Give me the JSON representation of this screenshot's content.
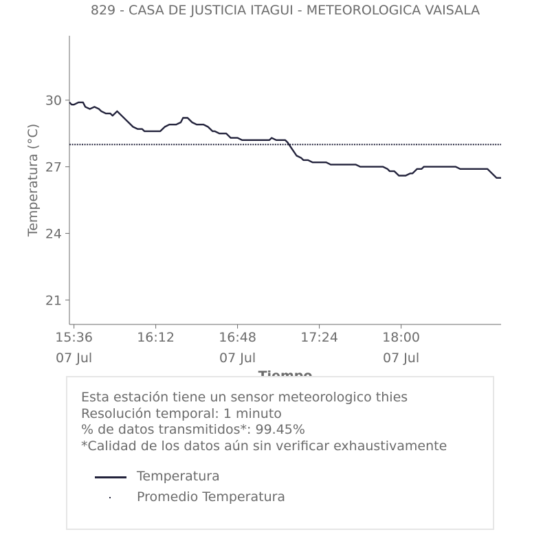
{
  "chart_data": {
    "type": "line",
    "title": "829 - CASA DE JUSTICIA ITAGUI - METEOROLOGICA VAISALA",
    "xlabel": "Tiempo",
    "ylabel": "Temperatura (°C)",
    "ylim": [
      19.9,
      32.9
    ],
    "xlim": [
      "15:34",
      "18:44"
    ],
    "y_ticks": [
      "21",
      "24",
      "27",
      "30"
    ],
    "x_ticks": [
      {
        "time": "15:36",
        "line1": "15:36",
        "line2": "07 Jul"
      },
      {
        "time": "16:12",
        "line1": "16:12",
        "line2": ""
      },
      {
        "time": "16:48",
        "line1": "16:48",
        "line2": "07 Jul"
      },
      {
        "time": "17:24",
        "line1": "17:24",
        "line2": ""
      },
      {
        "time": "18:00",
        "line1": "18:00",
        "line2": "07 Jul"
      }
    ],
    "grid": false,
    "series": [
      {
        "name": "Temperatura",
        "color": "#22223b",
        "style": "solid",
        "points": [
          [
            "15:34",
            29.9
          ],
          [
            "15:35",
            29.8
          ],
          [
            "15:36",
            29.8
          ],
          [
            "15:38",
            29.9
          ],
          [
            "15:40",
            29.9
          ],
          [
            "15:41",
            29.7
          ],
          [
            "15:43",
            29.6
          ],
          [
            "15:45",
            29.7
          ],
          [
            "15:47",
            29.6
          ],
          [
            "15:48",
            29.5
          ],
          [
            "15:50",
            29.4
          ],
          [
            "15:52",
            29.4
          ],
          [
            "15:53",
            29.3
          ],
          [
            "15:55",
            29.5
          ],
          [
            "15:57",
            29.3
          ],
          [
            "15:59",
            29.1
          ],
          [
            "16:00",
            29.0
          ],
          [
            "16:02",
            28.8
          ],
          [
            "16:04",
            28.7
          ],
          [
            "16:06",
            28.7
          ],
          [
            "16:07",
            28.6
          ],
          [
            "16:12",
            28.6
          ],
          [
            "16:14",
            28.6
          ],
          [
            "16:16",
            28.8
          ],
          [
            "16:18",
            28.9
          ],
          [
            "16:21",
            28.9
          ],
          [
            "16:23",
            29.0
          ],
          [
            "16:24",
            29.2
          ],
          [
            "16:26",
            29.2
          ],
          [
            "16:28",
            29.0
          ],
          [
            "16:30",
            28.9
          ],
          [
            "16:33",
            28.9
          ],
          [
            "16:35",
            28.8
          ],
          [
            "16:37",
            28.6
          ],
          [
            "16:38",
            28.6
          ],
          [
            "16:40",
            28.5
          ],
          [
            "16:43",
            28.5
          ],
          [
            "16:45",
            28.3
          ],
          [
            "16:48",
            28.3
          ],
          [
            "16:50",
            28.2
          ],
          [
            "17:02",
            28.2
          ],
          [
            "17:03",
            28.3
          ],
          [
            "17:05",
            28.2
          ],
          [
            "17:09",
            28.2
          ],
          [
            "17:10",
            28.1
          ],
          [
            "17:12",
            27.8
          ],
          [
            "17:14",
            27.5
          ],
          [
            "17:16",
            27.4
          ],
          [
            "17:17",
            27.3
          ],
          [
            "17:19",
            27.3
          ],
          [
            "17:21",
            27.2
          ],
          [
            "17:27",
            27.2
          ],
          [
            "17:29",
            27.1
          ],
          [
            "17:40",
            27.1
          ],
          [
            "17:42",
            27.0
          ],
          [
            "17:52",
            27.0
          ],
          [
            "17:54",
            26.9
          ],
          [
            "17:55",
            26.8
          ],
          [
            "17:57",
            26.8
          ],
          [
            "17:59",
            26.6
          ],
          [
            "18:02",
            26.6
          ],
          [
            "18:04",
            26.7
          ],
          [
            "18:05",
            26.7
          ],
          [
            "18:07",
            26.9
          ],
          [
            "18:09",
            26.9
          ],
          [
            "18:10",
            27.0
          ],
          [
            "18:24",
            27.0
          ],
          [
            "18:26",
            26.9
          ],
          [
            "18:38",
            26.9
          ],
          [
            "18:40",
            26.7
          ],
          [
            "18:42",
            26.5
          ],
          [
            "18:44",
            26.5
          ]
        ]
      },
      {
        "name": "Promedio Temperatura",
        "color": "#22223b",
        "style": "dotted",
        "points": [
          [
            "15:34",
            28.0
          ],
          [
            "18:44",
            28.0
          ]
        ]
      }
    ]
  },
  "info": {
    "lines": [
      "Esta estación tiene un sensor meteorologico thies",
      "Resolución temporal: 1 minuto",
      "% de datos transmitidos*: 99.45%",
      "*Calidad de los datos aún sin verificar exhaustivamente"
    ]
  },
  "legend": {
    "items": [
      "Temperatura",
      "Promedio Temperatura"
    ]
  },
  "colors": {
    "line": "#22223b",
    "text": "#6b6b6b",
    "axis": "#6b6b6b",
    "box_border": "#e6e6e6"
  }
}
